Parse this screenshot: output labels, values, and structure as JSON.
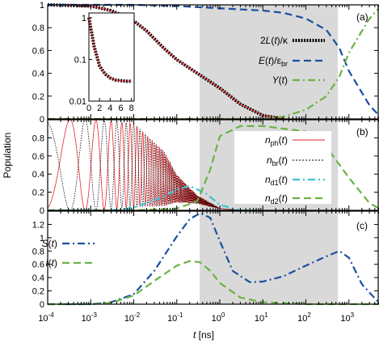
{
  "figure": {
    "ylabel": "Population",
    "xlabel_main": "t",
    "xlabel_unit": " [ns]",
    "x_ticks": [
      "10",
      "10",
      "10",
      "10",
      "10",
      "10",
      "10",
      "10"
    ],
    "x_tick_exps": [
      "-4",
      "-3",
      "-2",
      "-1",
      "0",
      "1",
      "2",
      "3"
    ],
    "shade_color": "#d9d9d9",
    "colors": {
      "blue": "#1a4fa0",
      "green": "#6ab344",
      "red": "#e4242b",
      "cyan": "#3fc1d6",
      "black": "#000000"
    }
  },
  "chart_data": [
    {
      "type": "line",
      "panel": "(a)",
      "xscale": "log",
      "xlim": [
        0.0001,
        5000
      ],
      "ylim": [
        0,
        1
      ],
      "shaded_x": [
        0.35,
        600
      ],
      "y_ticks": [
        "0",
        "0.2",
        "0.4",
        "0.6",
        "0.8",
        "1"
      ],
      "series": [
        {
          "name": "2L(t)/κ",
          "label_html": [
            "2",
            "L",
            "(",
            "t",
            ")/κ"
          ],
          "style": "dotted-thick",
          "color": "black",
          "x": [
            0.0001,
            0.001,
            0.003,
            0.01,
            0.02,
            0.05,
            0.1,
            0.3,
            1,
            3,
            10,
            30
          ],
          "y": [
            1.0,
            0.99,
            0.95,
            0.86,
            0.77,
            0.62,
            0.52,
            0.4,
            0.27,
            0.13,
            0.03,
            0.0
          ]
        },
        {
          "name": "E(t)/ε_br",
          "style": "dashed",
          "color": "blue",
          "x": [
            0.0001,
            0.01,
            0.1,
            1,
            10,
            30,
            100,
            300,
            600,
            1000,
            3000,
            5000
          ],
          "y": [
            1.0,
            1.0,
            0.99,
            0.97,
            0.95,
            0.93,
            0.88,
            0.78,
            0.62,
            0.42,
            0.12,
            0.03
          ]
        },
        {
          "name": "Y(t)",
          "style": "dashdot",
          "color": "green",
          "x": [
            0.0001,
            10,
            30,
            100,
            300,
            600,
            1000,
            3000,
            5000
          ],
          "y": [
            0.0,
            0.0,
            0.02,
            0.08,
            0.2,
            0.37,
            0.58,
            0.88,
            0.97
          ]
        }
      ],
      "inset": {
        "xscale": "linear",
        "yscale": "log",
        "xlim": [
          0,
          8.5
        ],
        "ylim": [
          0.01,
          1.3
        ],
        "x_ticks": [
          "0",
          "2",
          "4",
          "6",
          "8"
        ],
        "y_ticks": [
          "1",
          "0.1",
          "0.01"
        ],
        "x": [
          0,
          0.5,
          1,
          2,
          3,
          4,
          5,
          6,
          7,
          8
        ],
        "y": [
          1.0,
          0.45,
          0.2,
          0.07,
          0.045,
          0.036,
          0.032,
          0.031,
          0.03,
          0.03
        ]
      }
    },
    {
      "type": "line",
      "panel": "(b)",
      "xscale": "log",
      "xlim": [
        0.0001,
        5000
      ],
      "ylim": [
        0,
        1
      ],
      "y_ticks": [
        "0",
        "0.2",
        "0.4",
        "0.6",
        "0.8"
      ],
      "series": [
        {
          "name": "n_ph(t)",
          "style": "solid-oscillating",
          "color": "red",
          "x": [
            0.0001,
            0.001,
            0.01,
            0.05,
            0.1,
            0.3,
            1,
            3
          ],
          "y": [
            0.5,
            0.5,
            0.5,
            0.35,
            0.24,
            0.12,
            0.02,
            0.0
          ],
          "envelope_amp": [
            1.0,
            1.0,
            0.92,
            0.6,
            0.3,
            0.08,
            0.0,
            0.0
          ]
        },
        {
          "name": "n_br(t)",
          "style": "dotted-oscillating",
          "color": "black",
          "x": [
            0.0001,
            0.001,
            0.01,
            0.05,
            0.1,
            0.3,
            1,
            3
          ],
          "y": [
            0.5,
            0.5,
            0.5,
            0.35,
            0.24,
            0.12,
            0.02,
            0.0
          ],
          "envelope_amp": [
            1.0,
            1.0,
            0.92,
            0.6,
            0.3,
            0.08,
            0.0,
            0.0
          ]
        },
        {
          "name": "n_d1(t)",
          "style": "dashdot",
          "color": "cyan",
          "x": [
            0.0001,
            0.003,
            0.01,
            0.05,
            0.1,
            0.2,
            0.5,
            1,
            3,
            10
          ],
          "y": [
            0.0,
            0.0,
            0.03,
            0.15,
            0.23,
            0.27,
            0.18,
            0.06,
            0.0,
            0.0
          ]
        },
        {
          "name": "n_d2(t)",
          "style": "dashed",
          "color": "green",
          "x": [
            0.0001,
            0.01,
            0.1,
            0.3,
            0.6,
            1,
            3,
            10,
            100,
            300,
            1000,
            3000,
            5000
          ],
          "y": [
            0.0,
            0.0,
            0.02,
            0.1,
            0.45,
            0.82,
            0.93,
            0.93,
            0.87,
            0.7,
            0.36,
            0.08,
            0.02
          ]
        }
      ]
    },
    {
      "type": "line",
      "panel": "(c)",
      "xscale": "log",
      "xlim": [
        0.0001,
        5000
      ],
      "ylim": [
        0,
        1.4
      ],
      "y_ticks": [
        "0",
        "0.2",
        "0.4",
        "0.6",
        "0.8",
        "1",
        "1.2"
      ],
      "series": [
        {
          "name": "S(t)",
          "style": "dashdot",
          "color": "blue",
          "x": [
            0.0001,
            0.001,
            0.003,
            0.01,
            0.03,
            0.1,
            0.2,
            0.35,
            0.6,
            1,
            2,
            5,
            10,
            30,
            100,
            300,
            600,
            1000,
            2000,
            5000
          ],
          "y": [
            0.0,
            0.0,
            0.03,
            0.15,
            0.5,
            1.02,
            1.28,
            1.37,
            1.3,
            0.95,
            0.5,
            0.33,
            0.34,
            0.42,
            0.58,
            0.72,
            0.8,
            0.7,
            0.3,
            0.02
          ]
        },
        {
          "name": "I(t)",
          "style": "dashed",
          "color": "green",
          "x": [
            0.0001,
            0.001,
            0.003,
            0.01,
            0.03,
            0.1,
            0.2,
            0.35,
            0.6,
            1,
            3,
            10,
            100,
            1000,
            5000
          ],
          "y": [
            0.0,
            0.0,
            0.02,
            0.13,
            0.35,
            0.58,
            0.65,
            0.63,
            0.5,
            0.32,
            0.1,
            0.03,
            0.0,
            0.0,
            0.0
          ]
        }
      ]
    }
  ],
  "panels_labels": {
    "a": "(a)",
    "b": "(b)",
    "c": "(c)"
  },
  "legend_text": {
    "L": [
      "2",
      "L",
      "(",
      "t",
      ")/κ"
    ],
    "E": [
      "E",
      "(",
      "t",
      ")/ε",
      "br"
    ],
    "Y": [
      "Y",
      "(",
      "t",
      ")"
    ],
    "nph": [
      "n",
      "ph",
      "(",
      "t",
      ")"
    ],
    "nbr": [
      "n",
      "br",
      "(",
      "t",
      ")"
    ],
    "nd1": [
      "n",
      "d1",
      "(",
      "t",
      ")"
    ],
    "nd2": [
      "n",
      "d2",
      "(",
      "t",
      ")"
    ],
    "S": [
      "S",
      "(",
      "t",
      ")"
    ],
    "I": [
      "I",
      "(",
      "t",
      ")"
    ]
  }
}
